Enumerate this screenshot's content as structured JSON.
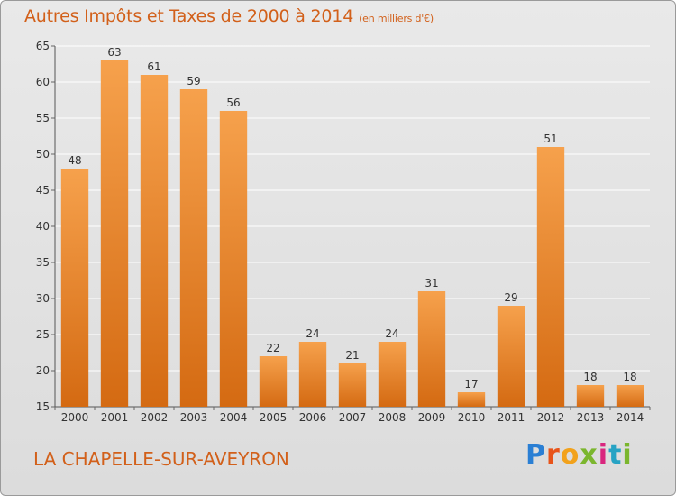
{
  "header": {
    "title": "Autres Impôts et Taxes de 2000 à 2014",
    "unit": "(en milliers d'€)"
  },
  "footer": {
    "commune": "LA CHAPELLE-SUR-AVEYRON",
    "logo": [
      "P",
      "r",
      "o",
      "x",
      "i",
      "t",
      "i"
    ]
  },
  "colors": {
    "bar_top": "#f6a14c",
    "bar_bottom": "#d46a12",
    "accent": "#d2601a",
    "grid": "#ffffff"
  },
  "chart_data": {
    "type": "bar",
    "title": "Autres Impôts et Taxes de 2000 à 2014",
    "subtitle": "(en milliers d'€)",
    "categories": [
      "2000",
      "2001",
      "2002",
      "2003",
      "2004",
      "2005",
      "2006",
      "2007",
      "2008",
      "2009",
      "2010",
      "2011",
      "2012",
      "2013",
      "2014"
    ],
    "values": [
      48,
      63,
      61,
      59,
      56,
      22,
      24,
      21,
      24,
      31,
      17,
      29,
      51,
      18,
      18
    ],
    "ylim": [
      15,
      65
    ],
    "yticks": [
      15,
      20,
      25,
      30,
      35,
      40,
      45,
      50,
      55,
      60,
      65
    ],
    "grid": true,
    "xlabel": "",
    "ylabel": ""
  }
}
